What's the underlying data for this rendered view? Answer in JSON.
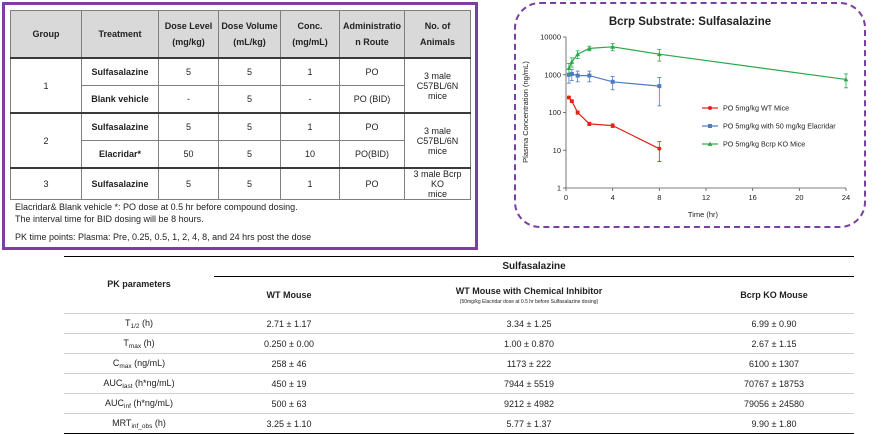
{
  "design_table": {
    "headers": [
      "Group",
      "Treatment",
      "Dose Level\n(mg/kg)",
      "Dose Volume\n(mL/kg)",
      "Conc.\n(mg/mL)",
      "Administratio\nn Route",
      "No. of Animals"
    ],
    "rows": [
      {
        "group": "1",
        "treatment": "Sulfasalazine",
        "dose_level": "5",
        "dose_volume": "5",
        "conc": "1",
        "route": "PO",
        "animals": "3 male\nC57BL/6N mice"
      },
      {
        "group": "",
        "treatment": "Blank vehicle",
        "dose_level": "-",
        "dose_volume": "5",
        "conc": "-",
        "route": "PO   (BID)",
        "animals": ""
      },
      {
        "group": "2",
        "treatment": "Sulfasalazine",
        "dose_level": "5",
        "dose_volume": "5",
        "conc": "1",
        "route": "PO",
        "animals": "3 male\nC57BL/6N mice"
      },
      {
        "group": "",
        "treatment": "Elacridar*",
        "dose_level": "50",
        "dose_volume": "5",
        "conc": "10",
        "route": "PO(BID)",
        "animals": ""
      },
      {
        "group": "3",
        "treatment": "Sulfasalazine",
        "dose_level": "5",
        "dose_volume": "5",
        "conc": "1",
        "route": "PO",
        "animals": "3 male Bcrp KO\nmice"
      }
    ],
    "notes": {
      "line1": "Elacridar& Blank vehicle *: PO dose at 0.5 hr before compound dosing.",
      "line2": "The interval time for BID dosing will be 8 hours.",
      "line3": "PK time points: Plasma: Pre, 0.25, 0.5, 1, 2, 4, 8, and 24 hrs post the dose"
    }
  },
  "chart_data": {
    "type": "line",
    "title": "Bcrp Substrate: Sulfasalazine",
    "xlabel": "Time (hr)",
    "ylabel": "Plasma Concentration (ng/mL)",
    "xlim": [
      0,
      24
    ],
    "xticks": [
      "0",
      "4",
      "8",
      "12",
      "16",
      "20",
      "24"
    ],
    "ylim": [
      1,
      10000
    ],
    "yscale": "log",
    "yticks": [
      "1",
      "10",
      "100",
      "1000",
      "10000"
    ],
    "legend_position": "right",
    "series": [
      {
        "name": "PO 5mg/kg WT Mice",
        "color": "#e8201a",
        "marker": "circle",
        "x": [
          0.25,
          0.5,
          1,
          2,
          4,
          8
        ],
        "y": [
          250,
          200,
          100,
          50,
          45,
          11
        ],
        "err": [
          20,
          15,
          10,
          5,
          5,
          6
        ]
      },
      {
        "name": "PO 5mg/kg with 50 mg/kg Elacridar",
        "color": "#4f7bbf",
        "marker": "square",
        "x": [
          0.25,
          0.5,
          1,
          2,
          4,
          8
        ],
        "y": [
          1000,
          1050,
          950,
          950,
          650,
          500
        ],
        "err": [
          400,
          350,
          300,
          300,
          250,
          350
        ]
      },
      {
        "name": "PO 5mg/kg Bcrp KO Mice",
        "color": "#2aa84a",
        "marker": "triangle",
        "x": [
          0.25,
          0.5,
          1,
          2,
          4,
          8,
          24
        ],
        "y": [
          1500,
          2200,
          3500,
          5000,
          5500,
          3500,
          750
        ],
        "err": [
          500,
          600,
          800,
          700,
          1200,
          1200,
          300
        ]
      }
    ]
  },
  "pk_table": {
    "compound": "Sulfasalazine",
    "param_header": "PK parameters",
    "columns": [
      {
        "label": "WT Mouse",
        "note": ""
      },
      {
        "label": "WT Mouse with Chemical Inhibitor",
        "note": "(50mg/kg Elacridar dose at 0.5 hr before Sulfasalazine dosing)"
      },
      {
        "label": "Bcrp KO Mouse",
        "note": ""
      }
    ],
    "rows": [
      {
        "param": "T",
        "sub": "1/2",
        "unit": " (h)",
        "values": [
          "2.71 ± 1.17",
          "3.34 ± 1.25",
          "6.99 ± 0.90"
        ]
      },
      {
        "param": "T",
        "sub": "max",
        "unit": " (h)",
        "values": [
          "0.250 ± 0.00",
          "1.00 ± 0.870",
          "2.67 ± 1.15"
        ]
      },
      {
        "param": "C",
        "sub": "max",
        "unit": " (ng/mL)",
        "values": [
          "258 ± 46",
          "1173 ± 222",
          "6100 ± 1307"
        ]
      },
      {
        "param": "AUC",
        "sub": "last",
        "unit": " (h*ng/mL)",
        "values": [
          "450 ± 19",
          "7944 ± 5519",
          "70767 ± 18753"
        ]
      },
      {
        "param": "AUC",
        "sub": "inf",
        "unit": " (h*ng/mL)",
        "values": [
          "500 ± 63",
          "9212 ± 4982",
          "79056 ± 24580"
        ]
      },
      {
        "param": "MRT",
        "sub": "inf_obs",
        "unit": " (h)",
        "values": [
          "3.25 ± 1.10",
          "5.77 ± 1.37",
          "9.90 ± 1.80"
        ]
      }
    ]
  },
  "colors": {
    "frame": "#7a3fa0",
    "header_bg": "#d9d9d9"
  }
}
